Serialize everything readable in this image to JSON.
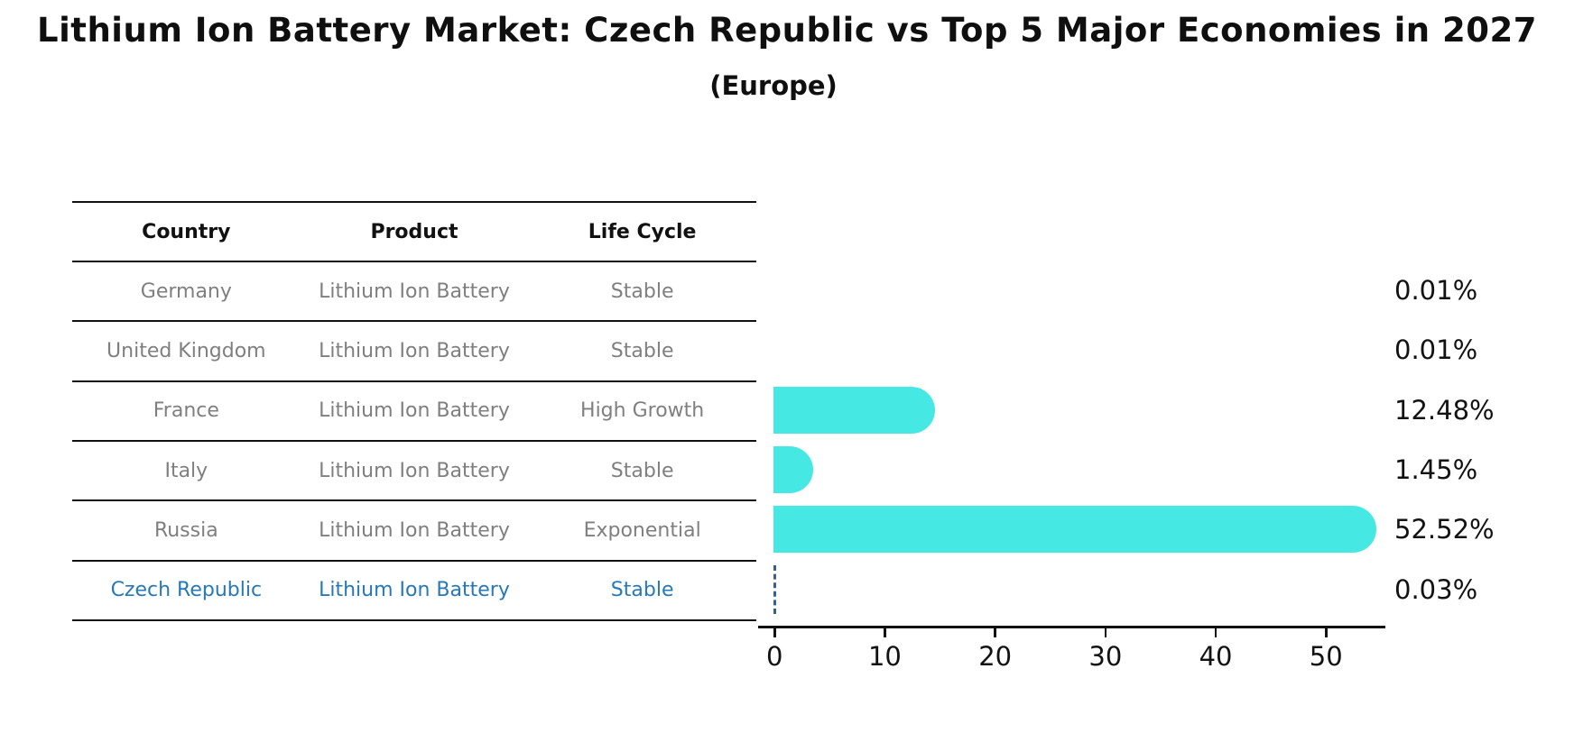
{
  "title": "Lithium Ion Battery Market: Czech Republic vs Top 5 Major Economies in 2027",
  "subtitle": "(Europe)",
  "table": {
    "headers": [
      "Country",
      "Product",
      "Life Cycle"
    ]
  },
  "rows": [
    {
      "country": "Germany",
      "product": "Lithium Ion Battery",
      "life_cycle": "Stable",
      "highlight": false
    },
    {
      "country": "United Kingdom",
      "product": "Lithium Ion Battery",
      "life_cycle": "Stable",
      "highlight": false
    },
    {
      "country": "France",
      "product": "Lithium Ion Battery",
      "life_cycle": "High Growth",
      "highlight": false
    },
    {
      "country": "Italy",
      "product": "Lithium Ion Battery",
      "life_cycle": "Stable",
      "highlight": false
    },
    {
      "country": "Russia",
      "product": "Lithium Ion Battery",
      "life_cycle": "Exponential",
      "highlight": false
    },
    {
      "country": "Czech Republic",
      "product": "Lithium Ion Battery",
      "life_cycle": "Stable",
      "highlight": true
    }
  ],
  "chart_data": {
    "type": "bar",
    "orientation": "horizontal",
    "title": "Lithium Ion Battery Market: Czech Republic vs Top 5 Major Economies in 2027 (Europe)",
    "categories": [
      "Germany",
      "United Kingdom",
      "France",
      "Italy",
      "Russia",
      "Czech Republic"
    ],
    "values": [
      0.01,
      0.01,
      12.48,
      1.45,
      52.52,
      0.03
    ],
    "value_labels": [
      "0.01%",
      "0.01%",
      "12.48%",
      "1.45%",
      "52.52%",
      "0.03%"
    ],
    "xlabel": "",
    "ylabel": "",
    "xlim": [
      0,
      55
    ],
    "xticks": [
      0,
      10,
      20,
      30,
      40,
      50
    ],
    "grid": false,
    "legend": false,
    "highlight_index": 5,
    "bar_color": "#45e8e2",
    "highlight_text_color": "#2679b8",
    "highlight_marker_color": "#34618e"
  }
}
